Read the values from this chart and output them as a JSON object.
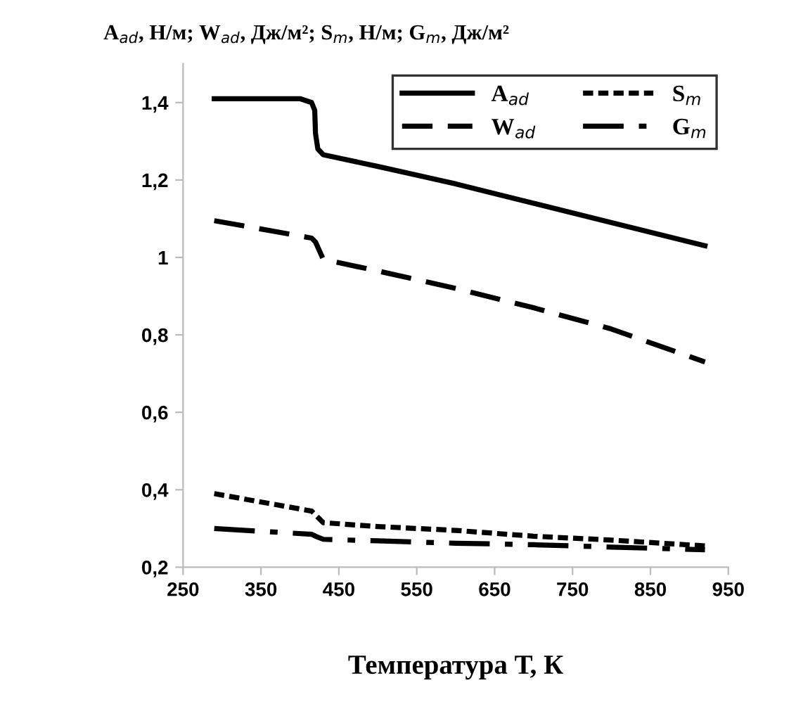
{
  "chart_data": {
    "type": "line",
    "ylabel": "A$_{ad}$, Н/м; W$_{ad}$, Дж/м²; S$_{m}$, Н/м; G$_{m}$, Дж/м²",
    "xlabel": "Температура Т, К",
    "xlim": [
      250,
      950
    ],
    "xticks": [
      250,
      350,
      450,
      550,
      650,
      750,
      850,
      950
    ],
    "ylim": [
      0.2,
      1.5
    ],
    "yticks": [
      {
        "value": 0.2,
        "label": "0,2"
      },
      {
        "value": 0.4,
        "label": "0,4"
      },
      {
        "value": 0.6,
        "label": "0,6"
      },
      {
        "value": 0.8,
        "label": "0,8"
      },
      {
        "value": 1,
        "label": "1"
      },
      {
        "value": 1.2,
        "label": "1,2"
      },
      {
        "value": 1.4,
        "label": "1,4"
      }
    ],
    "grid": false,
    "legend": "top right",
    "marker": "none",
    "series": [
      {
        "name": "A$_{ad}$",
        "color": "#000000",
        "line_style": "solid",
        "x": [
          290,
          400,
          415,
          419,
          420,
          423,
          430,
          500,
          600,
          700,
          800,
          920
        ],
        "values": [
          1.41,
          1.41,
          1.4,
          1.38,
          1.32,
          1.28,
          1.265,
          1.235,
          1.19,
          1.14,
          1.09,
          1.03
        ]
      },
      {
        "name": "W$_{ad}$",
        "color": "#000000",
        "line_style": "dashed",
        "x": [
          290,
          415,
          420,
          430,
          500,
          600,
          700,
          800,
          920
        ],
        "values": [
          1.095,
          1.05,
          1.04,
          0.995,
          0.965,
          0.92,
          0.87,
          0.815,
          0.73
        ]
      },
      {
        "name": "S$_{m}$",
        "color": "#000000",
        "line_style": "dotted",
        "x": [
          290,
          415,
          420,
          430,
          500,
          600,
          700,
          800,
          920
        ],
        "values": [
          0.39,
          0.345,
          0.335,
          0.315,
          0.305,
          0.295,
          0.28,
          0.27,
          0.255
        ]
      },
      {
        "name": "G$_{m}$",
        "color": "#000000",
        "line_style": "dashdot",
        "x": [
          290,
          415,
          420,
          430,
          500,
          600,
          700,
          800,
          920
        ],
        "values": [
          0.3,
          0.285,
          0.28,
          0.272,
          0.268,
          0.262,
          0.258,
          0.252,
          0.245
        ]
      }
    ]
  }
}
